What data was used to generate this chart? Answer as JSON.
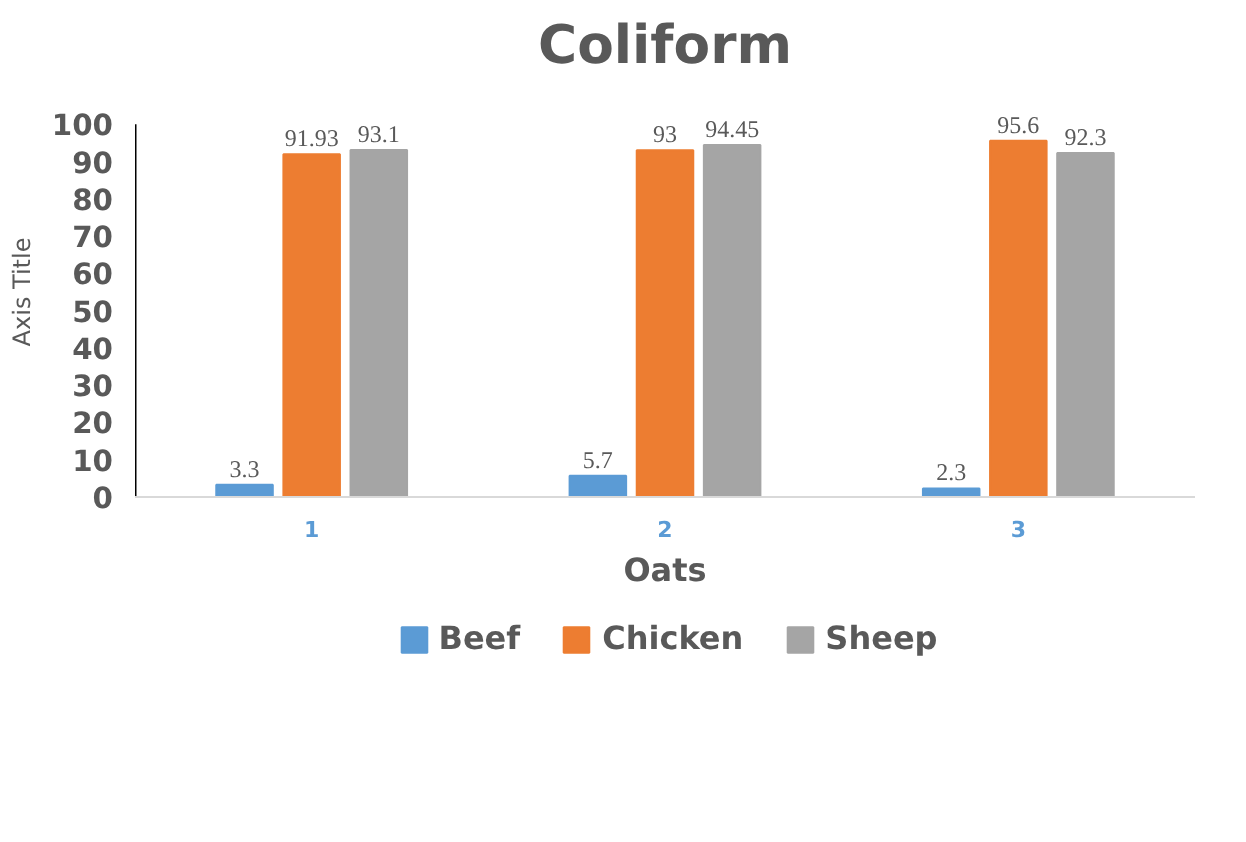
{
  "chart_data": {
    "type": "bar",
    "title": "Coliform",
    "xlabel": "Oats",
    "ylabel": "Axis Title",
    "categories": [
      "1",
      "2",
      "3"
    ],
    "series": [
      {
        "name": "Beef",
        "color": "#5b9bd5",
        "values": [
          3.3,
          5.7,
          2.3
        ]
      },
      {
        "name": "Chicken",
        "color": "#ed7d31",
        "values": [
          91.93,
          93,
          95.6
        ]
      },
      {
        "name": "Sheep",
        "color": "#a5a5a5",
        "values": [
          93.1,
          94.45,
          92.3
        ]
      }
    ],
    "ylim": [
      0,
      100
    ],
    "yticks": [
      0,
      10,
      20,
      30,
      40,
      50,
      60,
      70,
      80,
      90,
      100
    ],
    "data_labels": true,
    "legend": "bottom"
  }
}
